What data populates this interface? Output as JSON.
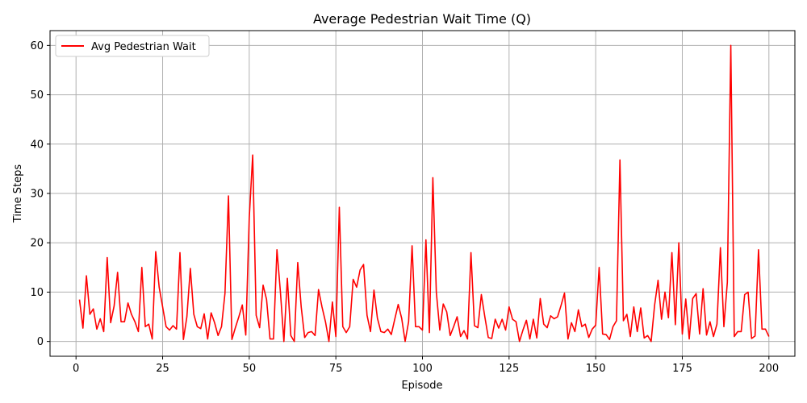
{
  "chart_data": {
    "type": "line",
    "title": "Average Pedestrian Wait Time (Q)",
    "xlabel": "Episode",
    "ylabel": "Time Steps",
    "xlim": [
      -7.5,
      207.5
    ],
    "ylim": [
      -3,
      63
    ],
    "xticks": [
      0,
      25,
      50,
      75,
      100,
      125,
      150,
      175,
      200
    ],
    "yticks": [
      0,
      10,
      20,
      30,
      40,
      50,
      60
    ],
    "grid": true,
    "legend_position": "upper-left",
    "series": [
      {
        "name": "Avg Pedestrian Wait",
        "color": "#ff0000",
        "x": [
          1,
          2,
          3,
          4,
          5,
          6,
          7,
          8,
          9,
          10,
          11,
          12,
          13,
          14,
          15,
          16,
          17,
          18,
          19,
          20,
          21,
          22,
          23,
          24,
          25,
          26,
          27,
          28,
          29,
          30,
          31,
          32,
          33,
          34,
          35,
          36,
          37,
          38,
          39,
          40,
          41,
          42,
          43,
          44,
          45,
          46,
          47,
          48,
          49,
          50,
          51,
          52,
          53,
          54,
          55,
          56,
          57,
          58,
          59,
          60,
          61,
          62,
          63,
          64,
          65,
          66,
          67,
          68,
          69,
          70,
          71,
          72,
          73,
          74,
          75,
          76,
          77,
          78,
          79,
          80,
          81,
          82,
          83,
          84,
          85,
          86,
          87,
          88,
          89,
          90,
          91,
          92,
          93,
          94,
          95,
          96,
          97,
          98,
          99,
          100,
          101,
          102,
          103,
          104,
          105,
          106,
          107,
          108,
          109,
          110,
          111,
          112,
          113,
          114,
          115,
          116,
          117,
          118,
          119,
          120,
          121,
          122,
          123,
          124,
          125,
          126,
          127,
          128,
          129,
          130,
          131,
          132,
          133,
          134,
          135,
          136,
          137,
          138,
          139,
          140,
          141,
          142,
          143,
          144,
          145,
          146,
          147,
          148,
          149,
          150,
          151,
          152,
          153,
          154,
          155,
          156,
          157,
          158,
          159,
          160,
          161,
          162,
          163,
          164,
          165,
          166,
          167,
          168,
          169,
          170,
          171,
          172,
          173,
          174,
          175,
          176,
          177,
          178,
          179,
          180,
          181,
          182,
          183,
          184,
          185,
          186,
          187,
          188,
          189,
          190,
          191,
          192,
          193,
          194,
          195,
          196,
          197,
          198,
          199,
          200
        ],
        "y": [
          8.5,
          2.7,
          13.3,
          5.5,
          6.6,
          2.5,
          4.6,
          2.0,
          17.0,
          3.8,
          7.2,
          14.0,
          4.0,
          4.0,
          7.8,
          5.5,
          4.0,
          2.0,
          15.0,
          3.0,
          3.5,
          0.5,
          18.2,
          11.0,
          7.0,
          3.0,
          2.3,
          3.2,
          2.5,
          18.0,
          0.4,
          5.0,
          14.8,
          5.5,
          3.0,
          2.6,
          5.6,
          0.5,
          5.8,
          3.8,
          1.2,
          3.0,
          9.8,
          29.5,
          0.4,
          2.8,
          5.0,
          7.4,
          1.3,
          25.0,
          37.8,
          5.3,
          2.8,
          11.4,
          8.5,
          0.5,
          0.5,
          18.6,
          10.0,
          0.0,
          12.8,
          1.2,
          0.0,
          16.0,
          7.0,
          0.8,
          1.8,
          2.0,
          1.2,
          10.5,
          7.0,
          4.0,
          0.0,
          8.0,
          1.0,
          27.2,
          3.0,
          1.8,
          3.0,
          12.6,
          11.0,
          14.5,
          15.6,
          5.3,
          2.0,
          10.4,
          4.7,
          2.0,
          1.8,
          2.5,
          1.4,
          4.5,
          7.5,
          4.7,
          0.0,
          4.0,
          19.4,
          3.0,
          3.0,
          2.3,
          20.6,
          1.8,
          33.2,
          10.0,
          2.3,
          7.6,
          6.0,
          1.2,
          3.0,
          5.0,
          1.0,
          2.2,
          0.5,
          18.0,
          3.2,
          2.8,
          9.5,
          5.0,
          0.8,
          0.6,
          4.5,
          2.7,
          4.5,
          2.3,
          7.0,
          4.5,
          4.0,
          0.0,
          2.3,
          4.3,
          0.5,
          4.5,
          0.7,
          8.7,
          3.5,
          2.8,
          5.2,
          4.6,
          5.0,
          7.3,
          9.8,
          0.5,
          3.8,
          2.0,
          6.4,
          3.0,
          3.5,
          0.8,
          2.5,
          3.3,
          15.0,
          1.5,
          1.4,
          0.4,
          3.0,
          4.2,
          36.8,
          4.2,
          5.5,
          1.0,
          7.0,
          2.0,
          6.8,
          0.7,
          1.2,
          0.0,
          7.3,
          12.4,
          4.5,
          10.0,
          4.8,
          18.0,
          3.4,
          20.0,
          1.5,
          8.6,
          0.5,
          8.7,
          9.7,
          1.5,
          10.7,
          1.3,
          4.0,
          1.0,
          3.5,
          19.0,
          3.0,
          12.0,
          60.0,
          1.0,
          2.0,
          2.0,
          9.5,
          10.0,
          0.6,
          1.1,
          18.6,
          2.5,
          2.5,
          1.0
        ]
      }
    ]
  }
}
